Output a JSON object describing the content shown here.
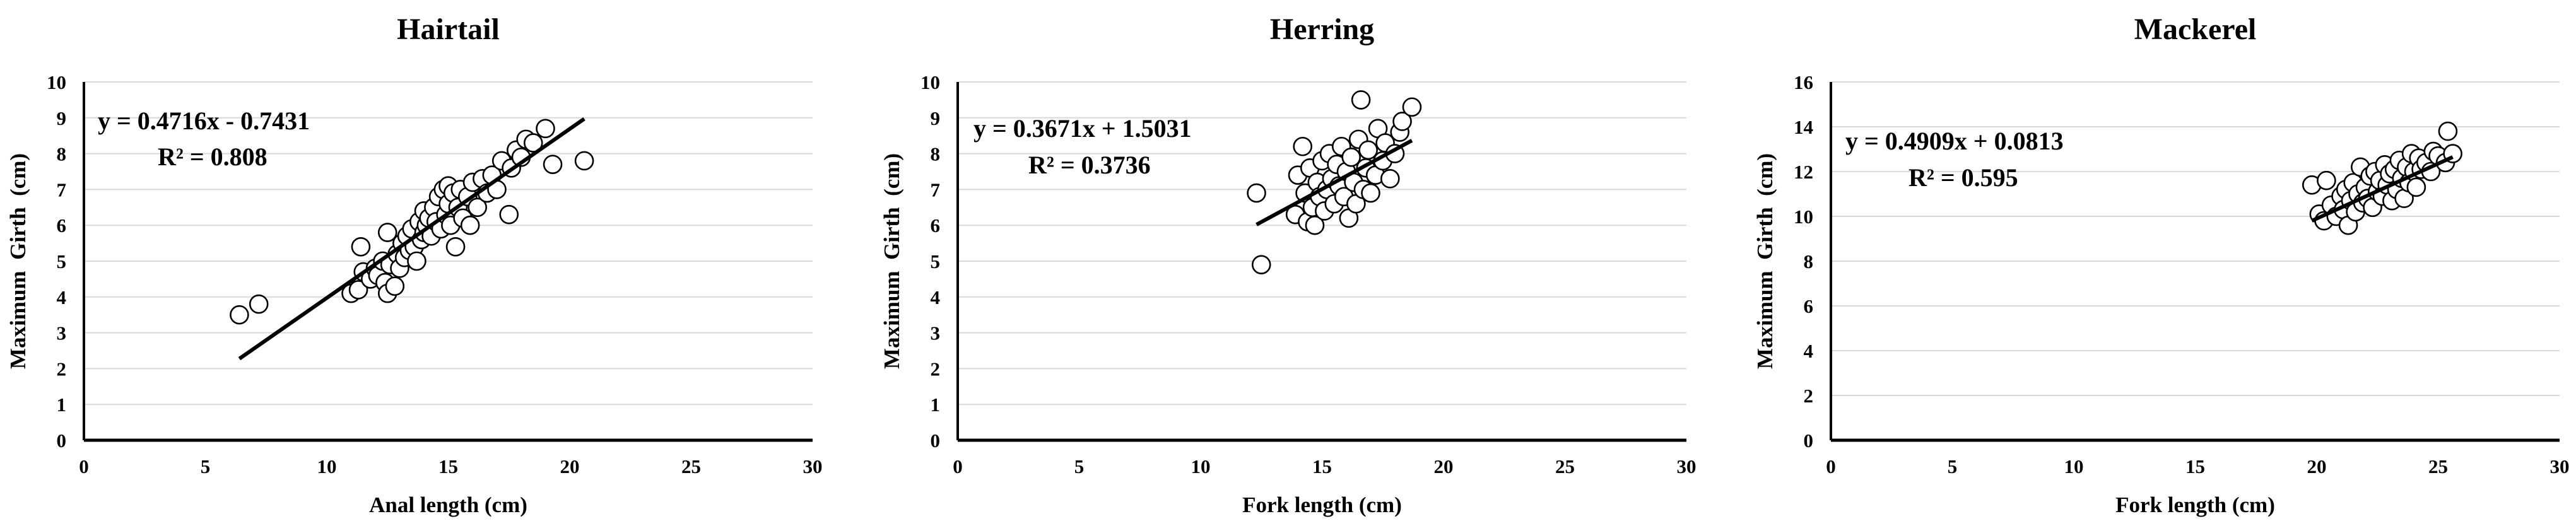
{
  "chart_data": [
    {
      "type": "scatter",
      "title": "Hairtail",
      "xlabel": "Anal length (cm)",
      "ylabel": "Maximum  Girth  (cm)",
      "xlim": [
        0,
        30
      ],
      "ylim": [
        0,
        10
      ],
      "xticks": [
        "0",
        "5",
        "10",
        "15",
        "20",
        "25",
        "30"
      ],
      "yticks": [
        "0",
        "1",
        "2",
        "3",
        "4",
        "5",
        "6",
        "7",
        "8",
        "9",
        "10"
      ],
      "grid": "horizontal",
      "equation": "y = 0.4716x - 0.7431",
      "r2": "R² = 0.808",
      "trendline": {
        "slope": 0.4716,
        "intercept": -0.7431,
        "x_range": [
          6.4,
          20.6
        ]
      },
      "points": [
        [
          6.4,
          3.5
        ],
        [
          7.2,
          3.8
        ],
        [
          11.0,
          4.1
        ],
        [
          11.3,
          4.2
        ],
        [
          11.4,
          5.4
        ],
        [
          11.5,
          4.7
        ],
        [
          11.8,
          4.5
        ],
        [
          12.0,
          4.8
        ],
        [
          12.1,
          4.6
        ],
        [
          12.3,
          5.0
        ],
        [
          12.4,
          4.4
        ],
        [
          12.5,
          4.1
        ],
        [
          12.5,
          5.8
        ],
        [
          12.6,
          4.9
        ],
        [
          12.8,
          4.3
        ],
        [
          12.9,
          5.2
        ],
        [
          13.0,
          4.8
        ],
        [
          13.1,
          5.5
        ],
        [
          13.2,
          5.1
        ],
        [
          13.3,
          5.7
        ],
        [
          13.4,
          5.3
        ],
        [
          13.5,
          5.9
        ],
        [
          13.6,
          5.4
        ],
        [
          13.7,
          5.0
        ],
        [
          13.8,
          6.1
        ],
        [
          13.9,
          5.6
        ],
        [
          14.0,
          5.8
        ],
        [
          14.0,
          6.4
        ],
        [
          14.1,
          6.0
        ],
        [
          14.2,
          6.2
        ],
        [
          14.3,
          5.7
        ],
        [
          14.4,
          6.5
        ],
        [
          14.5,
          6.1
        ],
        [
          14.6,
          6.8
        ],
        [
          14.7,
          5.9
        ],
        [
          14.8,
          7.0
        ],
        [
          14.9,
          6.3
        ],
        [
          15.0,
          6.6
        ],
        [
          15.0,
          7.1
        ],
        [
          15.1,
          6.0
        ],
        [
          15.2,
          6.9
        ],
        [
          15.3,
          5.4
        ],
        [
          15.4,
          6.5
        ],
        [
          15.5,
          7.0
        ],
        [
          15.6,
          6.2
        ],
        [
          15.8,
          6.8
        ],
        [
          15.9,
          6.0
        ],
        [
          16.0,
          7.2
        ],
        [
          16.2,
          6.5
        ],
        [
          16.4,
          7.3
        ],
        [
          16.6,
          6.9
        ],
        [
          16.8,
          7.4
        ],
        [
          17.0,
          7.0
        ],
        [
          17.2,
          7.8
        ],
        [
          17.5,
          6.3
        ],
        [
          17.6,
          7.6
        ],
        [
          17.8,
          8.1
        ],
        [
          18.0,
          7.9
        ],
        [
          18.2,
          8.4
        ],
        [
          18.5,
          8.3
        ],
        [
          19.0,
          8.7
        ],
        [
          19.3,
          7.7
        ],
        [
          20.6,
          7.8
        ]
      ]
    },
    {
      "type": "scatter",
      "title": "Herring",
      "xlabel": "Fork length (cm)",
      "ylabel": "Maximum  Girth  (cm)",
      "xlim": [
        0,
        30
      ],
      "ylim": [
        0,
        10
      ],
      "xticks": [
        "0",
        "5",
        "10",
        "15",
        "20",
        "25",
        "30"
      ],
      "yticks": [
        "0",
        "1",
        "2",
        "3",
        "4",
        "5",
        "6",
        "7",
        "8",
        "9",
        "10"
      ],
      "grid": "horizontal",
      "equation": "y = 0.3671x + 1.5031",
      "r2": "R² = 0.3736",
      "trendline": {
        "slope": 0.3671,
        "intercept": 1.5031,
        "x_range": [
          12.3,
          18.7
        ]
      },
      "points": [
        [
          12.3,
          6.9
        ],
        [
          12.5,
          4.9
        ],
        [
          13.9,
          6.3
        ],
        [
          14.0,
          7.4
        ],
        [
          14.2,
          8.2
        ],
        [
          14.3,
          6.9
        ],
        [
          14.4,
          6.1
        ],
        [
          14.5,
          7.6
        ],
        [
          14.6,
          6.5
        ],
        [
          14.7,
          6.0
        ],
        [
          14.8,
          7.2
        ],
        [
          14.9,
          6.8
        ],
        [
          15.0,
          7.8
        ],
        [
          15.1,
          6.4
        ],
        [
          15.2,
          7.0
        ],
        [
          15.3,
          8.0
        ],
        [
          15.4,
          7.3
        ],
        [
          15.5,
          6.6
        ],
        [
          15.6,
          7.7
        ],
        [
          15.7,
          7.1
        ],
        [
          15.8,
          8.2
        ],
        [
          15.9,
          6.8
        ],
        [
          16.0,
          7.5
        ],
        [
          16.1,
          6.2
        ],
        [
          16.2,
          7.9
        ],
        [
          16.3,
          7.2
        ],
        [
          16.4,
          6.6
        ],
        [
          16.5,
          8.4
        ],
        [
          16.6,
          9.5
        ],
        [
          16.7,
          7.0
        ],
        [
          16.8,
          7.6
        ],
        [
          16.9,
          8.1
        ],
        [
          17.0,
          6.9
        ],
        [
          17.2,
          7.4
        ],
        [
          17.3,
          8.7
        ],
        [
          17.5,
          7.8
        ],
        [
          17.6,
          8.3
        ],
        [
          17.8,
          7.3
        ],
        [
          18.0,
          8.0
        ],
        [
          18.2,
          8.6
        ],
        [
          18.3,
          8.9
        ],
        [
          18.7,
          9.3
        ]
      ]
    },
    {
      "type": "scatter",
      "title": "Mackerel",
      "xlabel": "Fork length (cm)",
      "ylabel": "Maximum  Girth  (cm)",
      "xlim": [
        0,
        30
      ],
      "ylim": [
        0,
        16
      ],
      "xticks": [
        "0",
        "5",
        "10",
        "15",
        "20",
        "25",
        "30"
      ],
      "yticks": [
        "0",
        "2",
        "4",
        "6",
        "8",
        "10",
        "12",
        "14",
        "16"
      ],
      "grid": "horizontal",
      "equation": "y = 0.4909x + 0.0813",
      "r2": "R² = 0.595",
      "trendline": {
        "slope": 0.4909,
        "intercept": 0.0813,
        "x_range": [
          19.8,
          25.6
        ]
      },
      "points": [
        [
          19.8,
          11.4
        ],
        [
          20.1,
          10.1
        ],
        [
          20.3,
          9.8
        ],
        [
          20.4,
          11.6
        ],
        [
          20.6,
          10.5
        ],
        [
          20.8,
          10.0
        ],
        [
          21.0,
          10.9
        ],
        [
          21.1,
          10.3
        ],
        [
          21.2,
          11.2
        ],
        [
          21.3,
          9.6
        ],
        [
          21.4,
          10.7
        ],
        [
          21.5,
          11.5
        ],
        [
          21.6,
          10.2
        ],
        [
          21.7,
          11.0
        ],
        [
          21.8,
          12.2
        ],
        [
          21.9,
          10.6
        ],
        [
          22.0,
          11.3
        ],
        [
          22.1,
          10.8
        ],
        [
          22.2,
          11.8
        ],
        [
          22.3,
          10.4
        ],
        [
          22.4,
          12.0
        ],
        [
          22.5,
          11.1
        ],
        [
          22.6,
          11.6
        ],
        [
          22.7,
          10.9
        ],
        [
          22.8,
          12.3
        ],
        [
          22.9,
          11.4
        ],
        [
          23.0,
          11.9
        ],
        [
          23.1,
          10.7
        ],
        [
          23.2,
          12.1
        ],
        [
          23.3,
          11.2
        ],
        [
          23.4,
          12.5
        ],
        [
          23.5,
          11.7
        ],
        [
          23.6,
          10.8
        ],
        [
          23.7,
          12.2
        ],
        [
          23.8,
          11.5
        ],
        [
          23.9,
          12.8
        ],
        [
          24.0,
          12.0
        ],
        [
          24.1,
          11.3
        ],
        [
          24.2,
          12.6
        ],
        [
          24.3,
          12.1
        ],
        [
          24.5,
          12.4
        ],
        [
          24.7,
          12.0
        ],
        [
          24.8,
          12.9
        ],
        [
          25.0,
          12.7
        ],
        [
          25.3,
          12.4
        ],
        [
          25.4,
          13.8
        ],
        [
          25.6,
          12.8
        ]
      ]
    }
  ]
}
